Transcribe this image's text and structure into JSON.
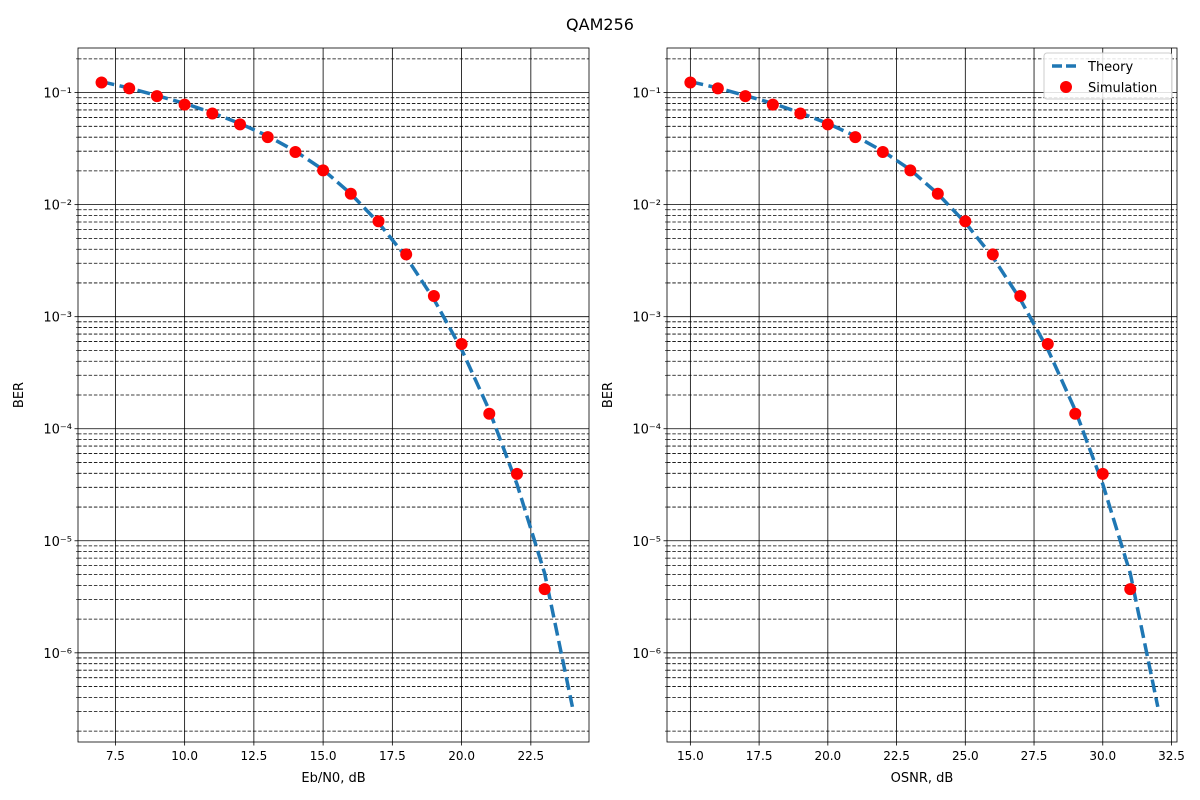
{
  "figure": {
    "title": "QAM256"
  },
  "chart_data": [
    {
      "type": "line",
      "title": "",
      "xlabel": "Eb/N0, dB",
      "ylabel": "BER",
      "xlim": [
        6.15,
        24.6
      ],
      "ylim": [
        1.6e-07,
        0.25
      ],
      "yscale": "log",
      "grid": "major solid, minor dashed",
      "xticks": [
        7.5,
        10.0,
        12.5,
        15.0,
        17.5,
        20.0,
        22.5
      ],
      "xtick_labels": [
        "7.5",
        "10.0",
        "12.5",
        "15.0",
        "17.5",
        "20.0",
        "22.5"
      ],
      "yticks": [
        -6,
        -5,
        -4,
        -3,
        -2,
        -1
      ],
      "series": [
        {
          "style": "dashed-line",
          "color": "#1f77b4",
          "x": [
            7,
            8,
            9,
            10,
            11,
            12,
            13,
            14,
            15,
            16,
            17,
            18,
            19,
            20,
            21,
            22,
            23,
            24
          ],
          "y": [
            0.125,
            0.11,
            0.094,
            0.08,
            0.066,
            0.053,
            0.041,
            0.03,
            0.0205,
            0.0125,
            0.0069,
            0.0034,
            0.00143,
            0.00051,
            0.000146,
            3.2e-05,
            5.1e-06,
            3.3e-07
          ]
        },
        {
          "style": "markers",
          "color": "#ff0000",
          "x": [
            7,
            8,
            9,
            10,
            11,
            12,
            13,
            14,
            15,
            16,
            17,
            18,
            19,
            20,
            21,
            22,
            23
          ],
          "y": [
            0.123,
            0.109,
            0.093,
            0.078,
            0.065,
            0.052,
            0.04,
            0.0295,
            0.0202,
            0.0125,
            0.0071,
            0.0036,
            0.00153,
            0.00057,
            0.000136,
            3.95e-05,
            3.7e-06
          ]
        }
      ]
    },
    {
      "type": "line",
      "title": "",
      "xlabel": "OSNR, dB",
      "ylabel": "BER",
      "xlim": [
        14.15,
        32.7
      ],
      "ylim": [
        1.6e-07,
        0.25
      ],
      "yscale": "log",
      "grid": "major solid, minor dashed",
      "xticks": [
        15.0,
        17.5,
        20.0,
        22.5,
        25.0,
        27.5,
        30.0,
        32.5
      ],
      "xtick_labels": [
        "15.0",
        "17.5",
        "20.0",
        "22.5",
        "25.0",
        "27.5",
        "30.0",
        "32.5"
      ],
      "yticks": [
        -6,
        -5,
        -4,
        -3,
        -2,
        -1
      ],
      "legend": {
        "position": "top-right"
      },
      "series": [
        {
          "name": "Theory",
          "style": "dashed-line",
          "color": "#1f77b4",
          "x": [
            15,
            16,
            17,
            18,
            19,
            20,
            21,
            22,
            23,
            24,
            25,
            26,
            27,
            28,
            29,
            30,
            31,
            32
          ],
          "y": [
            0.125,
            0.11,
            0.094,
            0.08,
            0.066,
            0.053,
            0.041,
            0.03,
            0.0205,
            0.0125,
            0.0069,
            0.0034,
            0.00143,
            0.00051,
            0.000146,
            3.2e-05,
            5.1e-06,
            3.3e-07
          ]
        },
        {
          "name": "Simulation",
          "style": "markers",
          "color": "#ff0000",
          "x": [
            15,
            16,
            17,
            18,
            19,
            20,
            21,
            22,
            23,
            24,
            25,
            26,
            27,
            28,
            29,
            30,
            31
          ],
          "y": [
            0.123,
            0.109,
            0.093,
            0.078,
            0.065,
            0.052,
            0.04,
            0.0295,
            0.0202,
            0.0125,
            0.0071,
            0.0036,
            0.00153,
            0.00057,
            0.000136,
            3.95e-05,
            3.7e-06
          ]
        }
      ]
    }
  ]
}
